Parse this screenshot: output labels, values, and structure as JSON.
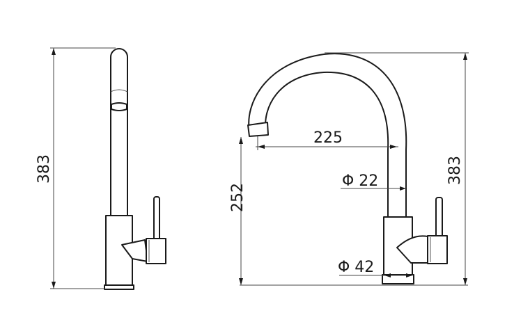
{
  "drawing": {
    "side_view": {
      "height_label": "383"
    },
    "front_view": {
      "reach_label": "225",
      "spout_height_label": "252",
      "total_height_label": "383",
      "spout_diameter_label": "Φ 22",
      "base_diameter_label": "Φ 42"
    }
  },
  "colors": {
    "line": "#1a1a1a",
    "background": "#ffffff"
  }
}
